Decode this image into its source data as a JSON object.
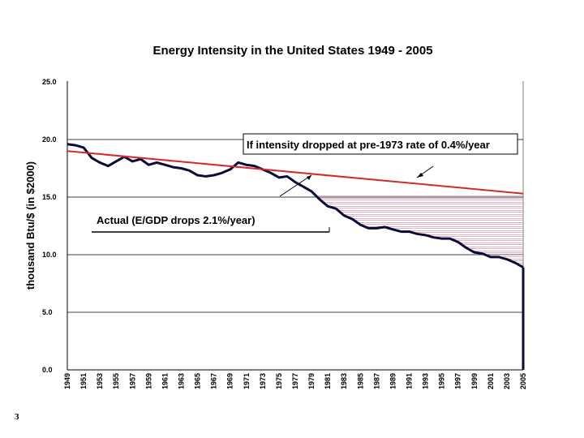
{
  "page_number": "3",
  "chart_data": {
    "type": "line",
    "title": "Energy Intensity in the United States 1949 - 2005",
    "xlabel": "",
    "ylabel": "thousand Btu/$ (in $2000)",
    "xlim": [
      1949,
      2005
    ],
    "ylim": [
      0,
      25
    ],
    "y_ticks": [
      0,
      5,
      10,
      15,
      20,
      25
    ],
    "y_tick_labels": [
      "0.0",
      "5.0",
      "10.0",
      "15.0",
      "20.0",
      "25.0"
    ],
    "x_tick_labels": [
      "1949",
      "1951",
      "1953",
      "1955",
      "1957",
      "1959",
      "1961",
      "1963",
      "1965",
      "1967",
      "1969",
      "1971",
      "1973",
      "1975",
      "1977",
      "1979",
      "1981",
      "1983",
      "1985",
      "1987",
      "1989",
      "1991",
      "1993",
      "1995",
      "1997",
      "1999",
      "2001",
      "2003",
      "2005"
    ],
    "grid": "horizontal",
    "colors": {
      "actual": "#0a0a3c",
      "trend": "#d42a2a",
      "hatch": "#c86a8a",
      "axis": "#808080",
      "grid": "#000000"
    },
    "series": [
      {
        "name": "Actual (E/GDP drops 2.1%/year)",
        "x": [
          1949,
          1950,
          1951,
          1952,
          1953,
          1954,
          1955,
          1956,
          1957,
          1958,
          1959,
          1960,
          1961,
          1962,
          1963,
          1964,
          1965,
          1966,
          1967,
          1968,
          1969,
          1970,
          1971,
          1972,
          1973,
          1974,
          1975,
          1976,
          1977,
          1978,
          1979,
          1980,
          1981,
          1982,
          1983,
          1984,
          1985,
          1986,
          1987,
          1988,
          1989,
          1990,
          1991,
          1992,
          1993,
          1994,
          1995,
          1996,
          1997,
          1998,
          1999,
          2000,
          2001,
          2002,
          2003,
          2004,
          2005
        ],
        "values": [
          19.6,
          19.5,
          19.3,
          18.4,
          18.0,
          17.7,
          18.1,
          18.5,
          18.1,
          18.3,
          17.8,
          18.0,
          17.8,
          17.6,
          17.5,
          17.3,
          16.9,
          16.8,
          16.9,
          17.1,
          17.4,
          18.0,
          17.8,
          17.7,
          17.4,
          17.1,
          16.7,
          16.8,
          16.3,
          15.9,
          15.5,
          14.8,
          14.2,
          14.0,
          13.4,
          13.1,
          12.6,
          12.3,
          12.3,
          12.4,
          12.2,
          12.0,
          12.0,
          11.8,
          11.7,
          11.5,
          11.4,
          11.4,
          11.1,
          10.6,
          10.2,
          10.1,
          9.8,
          9.8,
          9.6,
          9.3,
          8.9
        ]
      },
      {
        "name": "If intensity dropped at pre-1973 rate of 0.4%/year",
        "x": [
          1949,
          2005
        ],
        "values": [
          19.0,
          15.3
        ]
      }
    ],
    "annotations": {
      "trend_label": "If intensity dropped at pre-1973  rate of  0.4%/year",
      "actual_label": "Actual (E/GDP drops 2.1%/year)"
    }
  }
}
